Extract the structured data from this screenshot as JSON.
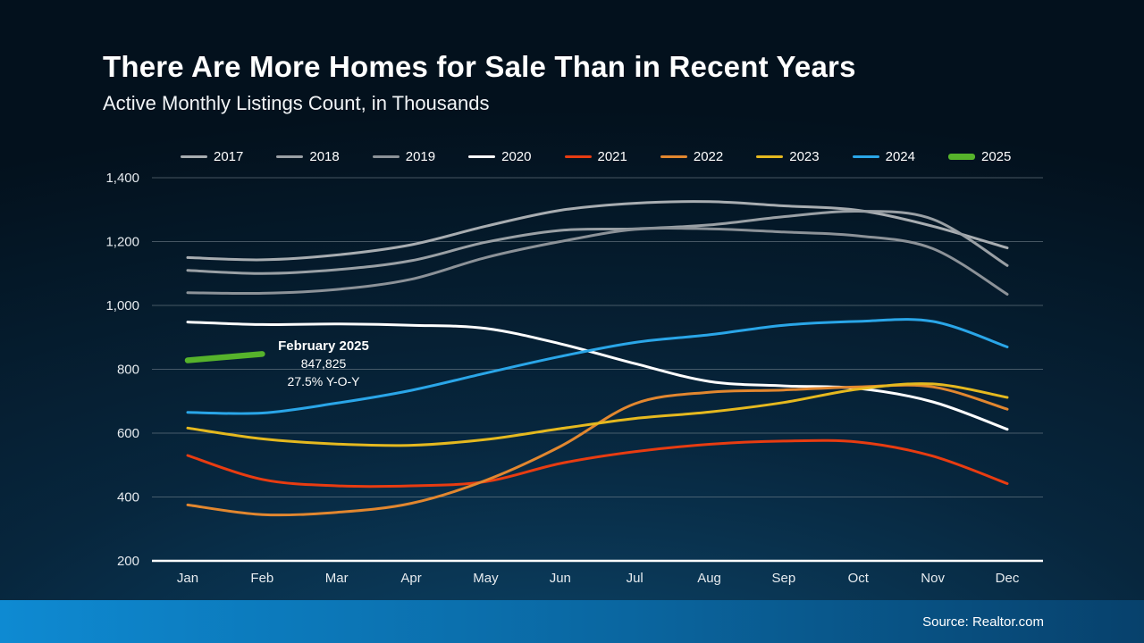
{
  "header": {
    "title": "There Are More Homes for Sale Than in Recent Years",
    "subtitle": "Active Monthly Listings Count, in Thousands"
  },
  "annotation": {
    "title": "February 2025",
    "value": "847,825",
    "yoy": "27.5% Y-O-Y"
  },
  "footer": {
    "source": "Source: Realtor.com"
  },
  "chart_data": {
    "type": "line",
    "title": "Active Monthly Listings Count, in Thousands",
    "units": "thousands",
    "x": [
      "Jan",
      "Feb",
      "Mar",
      "Apr",
      "May",
      "Jun",
      "Jul",
      "Aug",
      "Sep",
      "Oct",
      "Nov",
      "Dec"
    ],
    "ylim": [
      200,
      1400
    ],
    "grid": true,
    "legend_position": "top",
    "yticks": [
      {
        "value": 1400,
        "label": "1,400"
      },
      {
        "value": 1200,
        "label": "1,200"
      },
      {
        "value": 1000,
        "label": "1,000"
      },
      {
        "value": 800,
        "label": "800"
      },
      {
        "value": 600,
        "label": "600"
      },
      {
        "value": 400,
        "label": "400"
      },
      {
        "value": 200,
        "label": "200"
      }
    ],
    "series": [
      {
        "name": "2017",
        "color": "#a8adb1",
        "width": 3,
        "values": [
          1150,
          1143,
          1158,
          1190,
          1248,
          1298,
          1320,
          1325,
          1312,
          1298,
          1248,
          1180
        ]
      },
      {
        "name": "2018",
        "color": "#9aa0a5",
        "width": 3,
        "values": [
          1110,
          1100,
          1112,
          1140,
          1198,
          1235,
          1240,
          1252,
          1278,
          1295,
          1270,
          1125
        ]
      },
      {
        "name": "2019",
        "color": "#8c9298",
        "width": 3,
        "values": [
          1040,
          1038,
          1050,
          1082,
          1150,
          1200,
          1238,
          1240,
          1230,
          1218,
          1178,
          1035
        ]
      },
      {
        "name": "2020",
        "color": "#ffffff",
        "width": 3,
        "values": [
          948,
          940,
          942,
          938,
          928,
          880,
          818,
          762,
          748,
          740,
          698,
          612
        ]
      },
      {
        "name": "2021",
        "color": "#e83c11",
        "width": 3,
        "values": [
          530,
          455,
          435,
          435,
          448,
          505,
          542,
          565,
          575,
          572,
          528,
          442
        ]
      },
      {
        "name": "2022",
        "color": "#e2872f",
        "width": 3,
        "values": [
          375,
          345,
          352,
          380,
          452,
          558,
          692,
          728,
          735,
          745,
          745,
          675
        ]
      },
      {
        "name": "2023",
        "color": "#e5b91f",
        "width": 3,
        "values": [
          616,
          582,
          566,
          562,
          580,
          614,
          646,
          666,
          696,
          738,
          754,
          712
        ]
      },
      {
        "name": "2024",
        "color": "#2aa6e8",
        "width": 3,
        "values": [
          665,
          663,
          694,
          734,
          788,
          840,
          884,
          908,
          938,
          950,
          950,
          870
        ]
      },
      {
        "name": "2025",
        "color": "#56b32b",
        "width": 6.5,
        "values": [
          828,
          847.825
        ]
      }
    ]
  }
}
